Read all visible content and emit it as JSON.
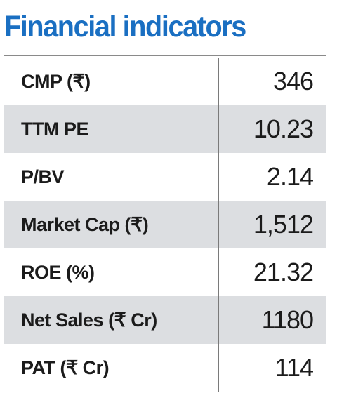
{
  "title": "Financial indicators",
  "colors": {
    "title": "#1a6fc2",
    "shaded_row": "#dcdee1",
    "text": "#1b1b1b",
    "rule": "#8a8a8a"
  },
  "rows": [
    {
      "label": "CMP (₹)",
      "value": "346"
    },
    {
      "label": "TTM PE",
      "value": "10.23"
    },
    {
      "label": "P/BV",
      "value": "2.14"
    },
    {
      "label": "Market Cap (₹)",
      "value": "1,512"
    },
    {
      "label": "ROE (%)",
      "value": "21.32"
    },
    {
      "label": "Net Sales (₹ Cr)",
      "value": "1180"
    },
    {
      "label": "PAT (₹ Cr)",
      "value": "114"
    }
  ]
}
